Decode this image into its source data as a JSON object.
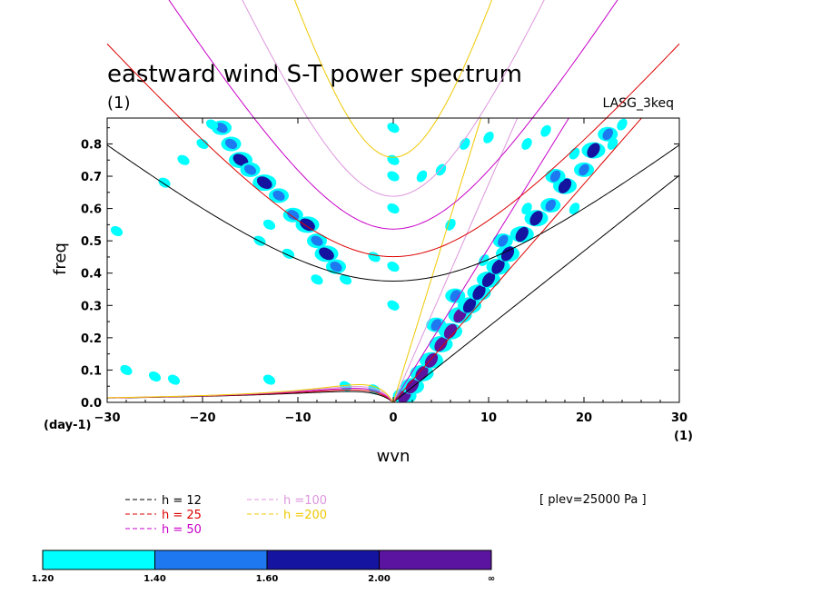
{
  "chart_data": {
    "type": "heatmap",
    "title": "eastward wind S-T power spectrum",
    "subtitle_left": "(1)",
    "subtitle_right": "LASG_3keq",
    "xlabel": "wvn",
    "ylabel": "freq",
    "x_unit": "(1)",
    "y_unit": "(day-1)",
    "xlim": [
      -30,
      30
    ],
    "ylim": [
      0,
      0.88
    ],
    "xticks": [
      -30,
      -20,
      -10,
      0,
      10,
      20,
      30
    ],
    "yticks": [
      0.0,
      0.1,
      0.2,
      0.3,
      0.4,
      0.5,
      0.6,
      0.7,
      0.8
    ],
    "xtick_labels": [
      "−30",
      "−20",
      "−10",
      "0",
      "10",
      "20",
      "30"
    ],
    "ytick_labels": [
      "0.0",
      "0.1",
      "0.2",
      "0.3",
      "0.4",
      "0.5",
      "0.6",
      "0.7",
      "0.8"
    ],
    "annotation": "[ plev=25000 Pa ]",
    "colorbar": {
      "levels": [
        "1.20",
        "1.40",
        "1.60",
        "2.00",
        "∞"
      ],
      "colors": [
        "#00ffff",
        "#1e78f0",
        "#1414a0",
        "#5a14a0"
      ]
    },
    "dispersion_curves": [
      {
        "label": "h = 12",
        "h": 12,
        "color": "#000000"
      },
      {
        "label": "h = 25",
        "h": 25,
        "color": "#dc0000"
      },
      {
        "label": "h = 50",
        "h": 50,
        "color": "#c800c8"
      },
      {
        "label": "h =100",
        "h": 100,
        "color": "#dc96dc"
      },
      {
        "label": "h =200",
        "h": 200,
        "color": "#f0c800"
      }
    ],
    "power_blobs": [
      {
        "x": 1.2,
        "y": 0.02,
        "level": 4
      },
      {
        "x": 2.0,
        "y": 0.05,
        "level": 4
      },
      {
        "x": 3.0,
        "y": 0.09,
        "level": 4
      },
      {
        "x": 4.0,
        "y": 0.13,
        "level": 4
      },
      {
        "x": 5.0,
        "y": 0.18,
        "level": 4
      },
      {
        "x": 6.0,
        "y": 0.22,
        "level": 4
      },
      {
        "x": 7.0,
        "y": 0.27,
        "level": 4
      },
      {
        "x": 8.0,
        "y": 0.3,
        "level": 3
      },
      {
        "x": 9.0,
        "y": 0.34,
        "level": 3
      },
      {
        "x": 10.0,
        "y": 0.38,
        "level": 3
      },
      {
        "x": 11.0,
        "y": 0.42,
        "level": 3
      },
      {
        "x": 12.0,
        "y": 0.46,
        "level": 3
      },
      {
        "x": 13.5,
        "y": 0.52,
        "level": 3
      },
      {
        "x": 15.0,
        "y": 0.57,
        "level": 3
      },
      {
        "x": 16.5,
        "y": 0.61,
        "level": 2
      },
      {
        "x": 18.0,
        "y": 0.67,
        "level": 3
      },
      {
        "x": 20.0,
        "y": 0.72,
        "level": 2
      },
      {
        "x": 21.0,
        "y": 0.78,
        "level": 3
      },
      {
        "x": 22.5,
        "y": 0.83,
        "level": 2
      },
      {
        "x": 24.0,
        "y": 0.86,
        "level": 1
      },
      {
        "x": 4.5,
        "y": 0.24,
        "level": 2
      },
      {
        "x": 6.5,
        "y": 0.33,
        "level": 2
      },
      {
        "x": 9.5,
        "y": 0.44,
        "level": 1
      },
      {
        "x": 11.5,
        "y": 0.5,
        "level": 2
      },
      {
        "x": 14.0,
        "y": 0.6,
        "level": 1
      },
      {
        "x": 17.0,
        "y": 0.7,
        "level": 2
      },
      {
        "x": 19.0,
        "y": 0.77,
        "level": 1
      },
      {
        "x": 23.0,
        "y": 0.8,
        "level": 1
      },
      {
        "x": -18.0,
        "y": 0.85,
        "level": 2
      },
      {
        "x": -17.0,
        "y": 0.8,
        "level": 2
      },
      {
        "x": -16.0,
        "y": 0.75,
        "level": 3
      },
      {
        "x": -15.0,
        "y": 0.72,
        "level": 2
      },
      {
        "x": -13.5,
        "y": 0.68,
        "level": 3
      },
      {
        "x": -12.0,
        "y": 0.64,
        "level": 2
      },
      {
        "x": -10.5,
        "y": 0.58,
        "level": 2
      },
      {
        "x": -9.0,
        "y": 0.55,
        "level": 3
      },
      {
        "x": -8.0,
        "y": 0.5,
        "level": 2
      },
      {
        "x": -7.0,
        "y": 0.46,
        "level": 3
      },
      {
        "x": -6.0,
        "y": 0.42,
        "level": 2
      },
      {
        "x": -13.0,
        "y": 0.55,
        "level": 1
      },
      {
        "x": -20.0,
        "y": 0.8,
        "level": 1
      },
      {
        "x": -22.0,
        "y": 0.75,
        "level": 1
      },
      {
        "x": -14.0,
        "y": 0.5,
        "level": 1
      },
      {
        "x": -11.0,
        "y": 0.46,
        "level": 1
      },
      {
        "x": -19.0,
        "y": 0.86,
        "level": 1
      },
      {
        "x": -24.0,
        "y": 0.68,
        "level": 1
      },
      {
        "x": -29.0,
        "y": 0.53,
        "level": 1
      },
      {
        "x": -8.0,
        "y": 0.38,
        "level": 1
      },
      {
        "x": -5.0,
        "y": 0.38,
        "level": 1
      },
      {
        "x": -2.0,
        "y": 0.45,
        "level": 1
      },
      {
        "x": 0.0,
        "y": 0.85,
        "level": 1
      },
      {
        "x": 0.0,
        "y": 0.75,
        "level": 1
      },
      {
        "x": 0.0,
        "y": 0.7,
        "level": 1
      },
      {
        "x": 0.0,
        "y": 0.6,
        "level": 1
      },
      {
        "x": 0.0,
        "y": 0.42,
        "level": 1
      },
      {
        "x": 0.0,
        "y": 0.3,
        "level": 1
      },
      {
        "x": 3.0,
        "y": 0.7,
        "level": 1
      },
      {
        "x": 5.0,
        "y": 0.72,
        "level": 1
      },
      {
        "x": 6.0,
        "y": 0.55,
        "level": 1
      },
      {
        "x": 7.5,
        "y": 0.8,
        "level": 1
      },
      {
        "x": 10.0,
        "y": 0.82,
        "level": 1
      },
      {
        "x": 14.0,
        "y": 0.8,
        "level": 1
      },
      {
        "x": 16.0,
        "y": 0.84,
        "level": 1
      },
      {
        "x": 19.0,
        "y": 0.6,
        "level": 1
      },
      {
        "x": -28.0,
        "y": 0.1,
        "level": 1
      },
      {
        "x": -25.0,
        "y": 0.08,
        "level": 1
      },
      {
        "x": -23.0,
        "y": 0.07,
        "level": 1
      },
      {
        "x": -13.0,
        "y": 0.07,
        "level": 1
      },
      {
        "x": -5.0,
        "y": 0.05,
        "level": 1
      },
      {
        "x": -2.0,
        "y": 0.04,
        "level": 1
      }
    ]
  }
}
